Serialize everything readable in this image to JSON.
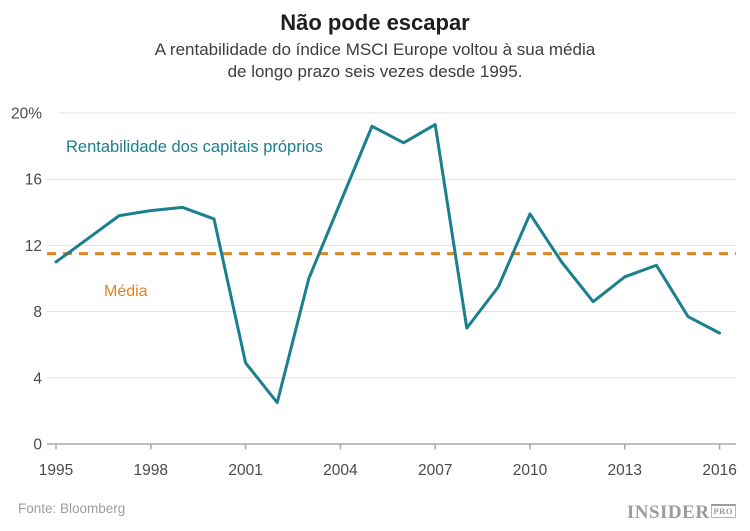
{
  "header": {
    "title": "Não pode escapar",
    "subtitle_line1": "A rentabilidade do índice MSCI Europe voltou à sua média",
    "subtitle_line2": "de longo prazo seis vezes desde 1995."
  },
  "chart_data": {
    "type": "line",
    "title": "Não pode escapar",
    "xlabel": "",
    "ylabel": "",
    "x": [
      1995,
      1996,
      1997,
      1998,
      1999,
      2000,
      2001,
      2002,
      2003,
      2004,
      2005,
      2006,
      2007,
      2008,
      2009,
      2010,
      2011,
      2012,
      2013,
      2014,
      2015,
      2016
    ],
    "series": [
      {
        "name": "Rentabilidade dos capitais próprios",
        "values": [
          11.0,
          12.4,
          13.8,
          14.1,
          14.3,
          13.6,
          4.9,
          2.5,
          10.0,
          14.6,
          19.2,
          18.2,
          19.3,
          7.0,
          9.5,
          13.9,
          11.0,
          8.6,
          10.1,
          10.8,
          7.7,
          6.7
        ]
      }
    ],
    "mean_line": {
      "label": "Média",
      "value": 11.5,
      "style": "dashed"
    },
    "ylim": [
      0,
      20
    ],
    "xlim": [
      1995,
      2016
    ],
    "yticks": {
      "values": [
        20,
        16,
        12,
        8,
        4,
        0
      ],
      "labels": [
        "20%",
        "16",
        "12",
        "8",
        "4",
        "0"
      ]
    },
    "xticks": {
      "values": [
        1995,
        1998,
        2001,
        2004,
        2007,
        2010,
        2013,
        2016
      ],
      "labels": [
        "1995",
        "1998",
        "2001",
        "2004",
        "2007",
        "2010",
        "2013",
        "2016"
      ]
    },
    "grid": "horizontal",
    "legend_position": "inline-annotations"
  },
  "footer": {
    "source": "Fonte: Bloomberg",
    "logo_text": "INSIDER",
    "logo_badge": "PRO"
  },
  "colors": {
    "line": "#1a7f8e",
    "mean": "#e8821e",
    "grid": "#e2e2e2",
    "axis": "#a8a8a8",
    "tick_label": "#4a4a4a",
    "title": "#1e1e1e",
    "subtitle": "#3d3d3d",
    "source": "#9e9e9e",
    "logo": "#9c9c9c",
    "background": "#ffffff"
  }
}
